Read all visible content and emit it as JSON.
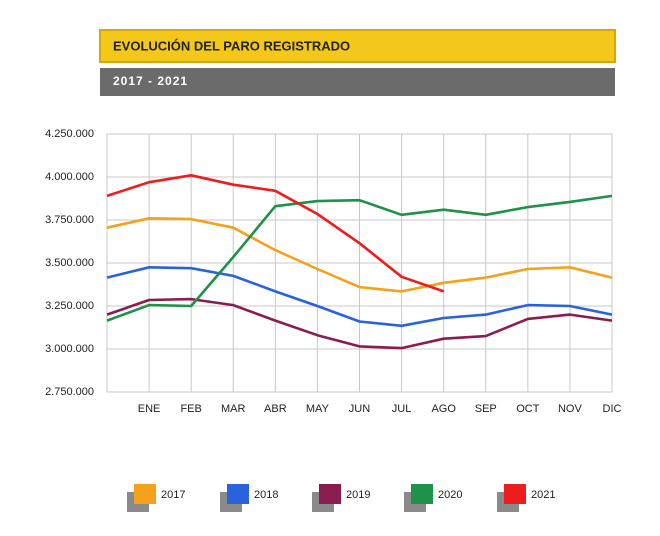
{
  "chart_data": {
    "type": "line",
    "title": "EVOLUCIÓN DEL PARO REGISTRADO",
    "subtitle": "2017 - 2021",
    "categories": [
      null,
      "ENE",
      "FEB",
      "MAR",
      "ABR",
      "MAY",
      "JUN",
      "JUL",
      "AGO",
      "SEP",
      "OCT",
      "NOV",
      "DIC"
    ],
    "series": [
      {
        "name": "2017",
        "color": "#f5a11c",
        "values": [
          3705000,
          3760000,
          3755000,
          3705000,
          3575000,
          3465000,
          3360000,
          3335000,
          3385000,
          3415000,
          3465000,
          3475000,
          3415000
        ]
      },
      {
        "name": "2018",
        "color": "#2a62dd",
        "values": [
          3415000,
          3475000,
          3470000,
          3425000,
          3335000,
          3250000,
          3160000,
          3135000,
          3180000,
          3200000,
          3255000,
          3250000,
          3200000
        ]
      },
      {
        "name": "2019",
        "color": "#8a1c52",
        "values": [
          3200000,
          3285000,
          3290000,
          3255000,
          3165000,
          3080000,
          3015000,
          3005000,
          3060000,
          3075000,
          3175000,
          3200000,
          3165000
        ]
      },
      {
        "name": "2020",
        "color": "#1f9148",
        "values": [
          3165000,
          3255000,
          3250000,
          3535000,
          3830000,
          3860000,
          3865000,
          3780000,
          3810000,
          3780000,
          3825000,
          3855000,
          3890000
        ]
      },
      {
        "name": "2021",
        "color": "#ee1d1d",
        "values": [
          3890000,
          3970000,
          4010000,
          3955000,
          3920000,
          3785000,
          3615000,
          3420000,
          3335000,
          null,
          null,
          null,
          null
        ]
      }
    ],
    "ylim": [
      2750000,
      4250000
    ],
    "yticks": [
      {
        "value": 2750000,
        "label": "2.750.000"
      },
      {
        "value": 3000000,
        "label": "3.000.000"
      },
      {
        "value": 3250000,
        "label": "3.250.000"
      },
      {
        "value": 3500000,
        "label": "3.500.000"
      },
      {
        "value": 3750000,
        "label": "3.750.000"
      },
      {
        "value": 4000000,
        "label": "4.000.000"
      },
      {
        "value": 4250000,
        "label": "4.250.000"
      }
    ],
    "grid": true
  }
}
